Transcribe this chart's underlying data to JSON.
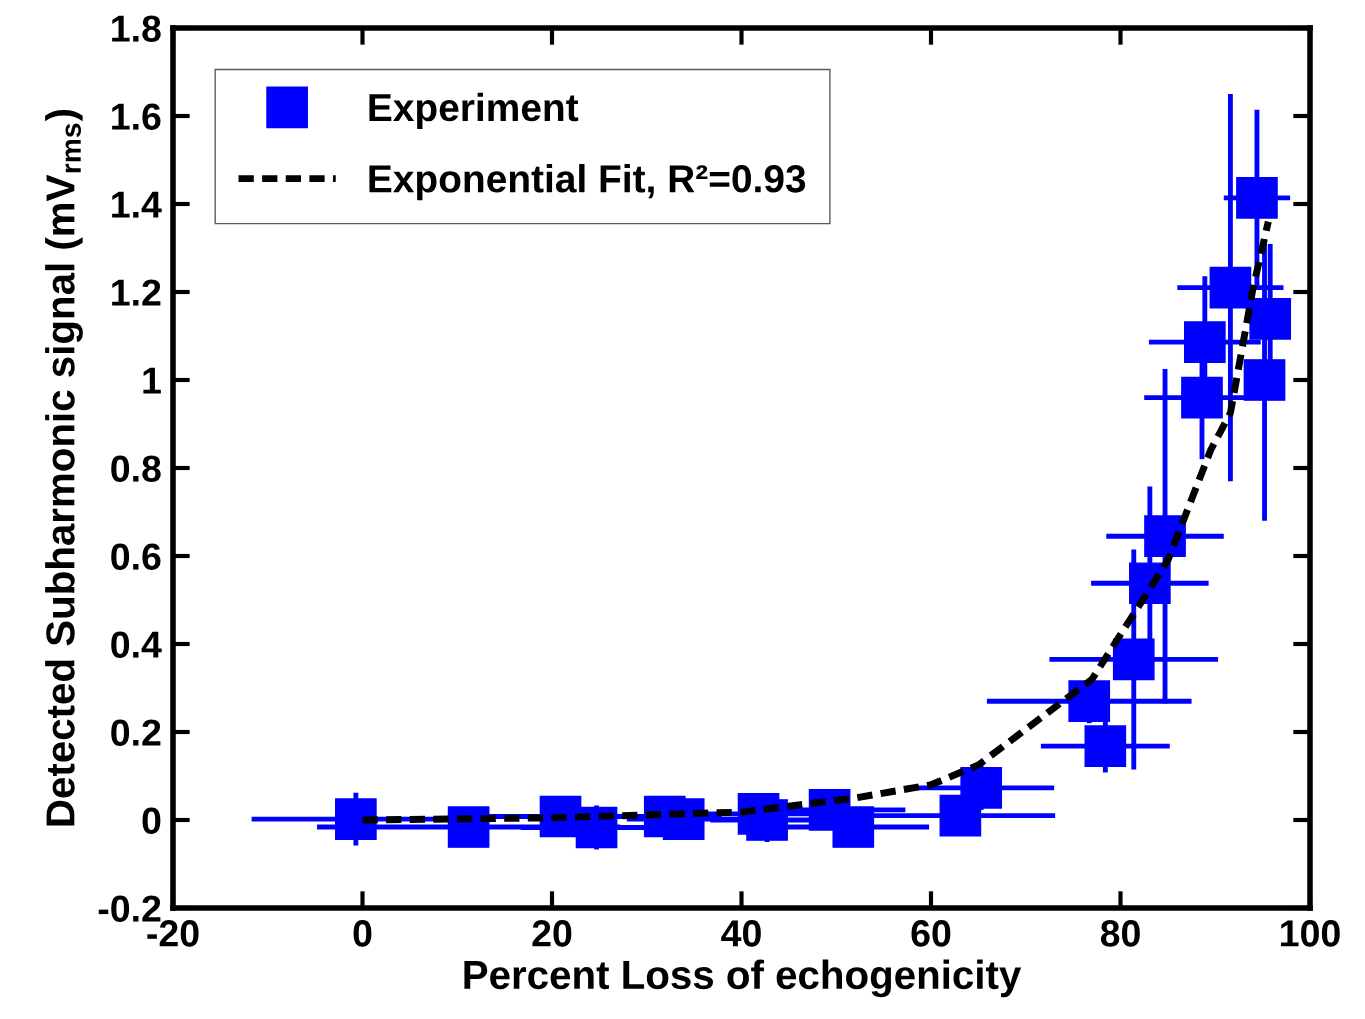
{
  "chart_data": {
    "type": "scatter",
    "xlabel": "Percent Loss of echogenicity",
    "ylabel": "Detected Subharmonic signal (mV$_{rms}$)",
    "xlim": [
      -20,
      100
    ],
    "xticks": [
      -20,
      0,
      20,
      40,
      60,
      80,
      100
    ],
    "ylim": [
      -0.2,
      1.8
    ],
    "yticks": [
      -0.2,
      0,
      0.2,
      0.4,
      0.6,
      0.8,
      1,
      1.2,
      1.4,
      1.6,
      1.8
    ],
    "grid": false,
    "legend": "top left",
    "tick_labels": "xy",
    "series": [
      {
        "name": "Experiment",
        "color": "#0000ff",
        "marker": "square",
        "x": [
          -0.7,
          11.2,
          20.9,
          24.7,
          31.9,
          33.9,
          41.8,
          42.7,
          49.3,
          51.8,
          63.1,
          65.3,
          76.7,
          78.4,
          81.4,
          83.1,
          84.7,
          88.6,
          88.9,
          91.6,
          94.4,
          95.8,
          95.2
        ],
        "values": [
          0.002,
          -0.016,
          0.008,
          -0.017,
          0.008,
          0.002,
          0.014,
          0,
          0.023,
          -0.016,
          0.01,
          0.073,
          0.27,
          0.168,
          0.365,
          0.538,
          0.645,
          0.96,
          1.086,
          1.21,
          1.414,
          1.139,
          1.0
        ],
        "xerrors": [
          11,
          16,
          8,
          8,
          6,
          6,
          6,
          6,
          8,
          8,
          10,
          7.7,
          10.8,
          6.8,
          8.9,
          6.2,
          6.2,
          6.1,
          5.9,
          5.6,
          3.5,
          2,
          2
        ],
        "errors": [
          0.06,
          0.03,
          0.03,
          0.05,
          0.03,
          0.03,
          0.03,
          0.05,
          0.03,
          0.03,
          0.04,
          0.05,
          0.05,
          0.06,
          0.25,
          0.22,
          0.38,
          0.14,
          0.15,
          0.44,
          0.2,
          0.17,
          0.32
        ]
      },
      {
        "name": "Exponential Fit, R²=0.93",
        "type": "line",
        "color": "#000000",
        "line_style": "dashed",
        "marker": "none",
        "x": [
          0,
          20,
          40,
          52,
          60,
          65,
          77,
          85,
          89.5,
          91.6,
          94,
          95.6
        ],
        "values": [
          0,
          0.005,
          0.018,
          0.05,
          0.08,
          0.125,
          0.32,
          0.59,
          0.84,
          0.925,
          1.21,
          1.36
        ]
      }
    ]
  }
}
